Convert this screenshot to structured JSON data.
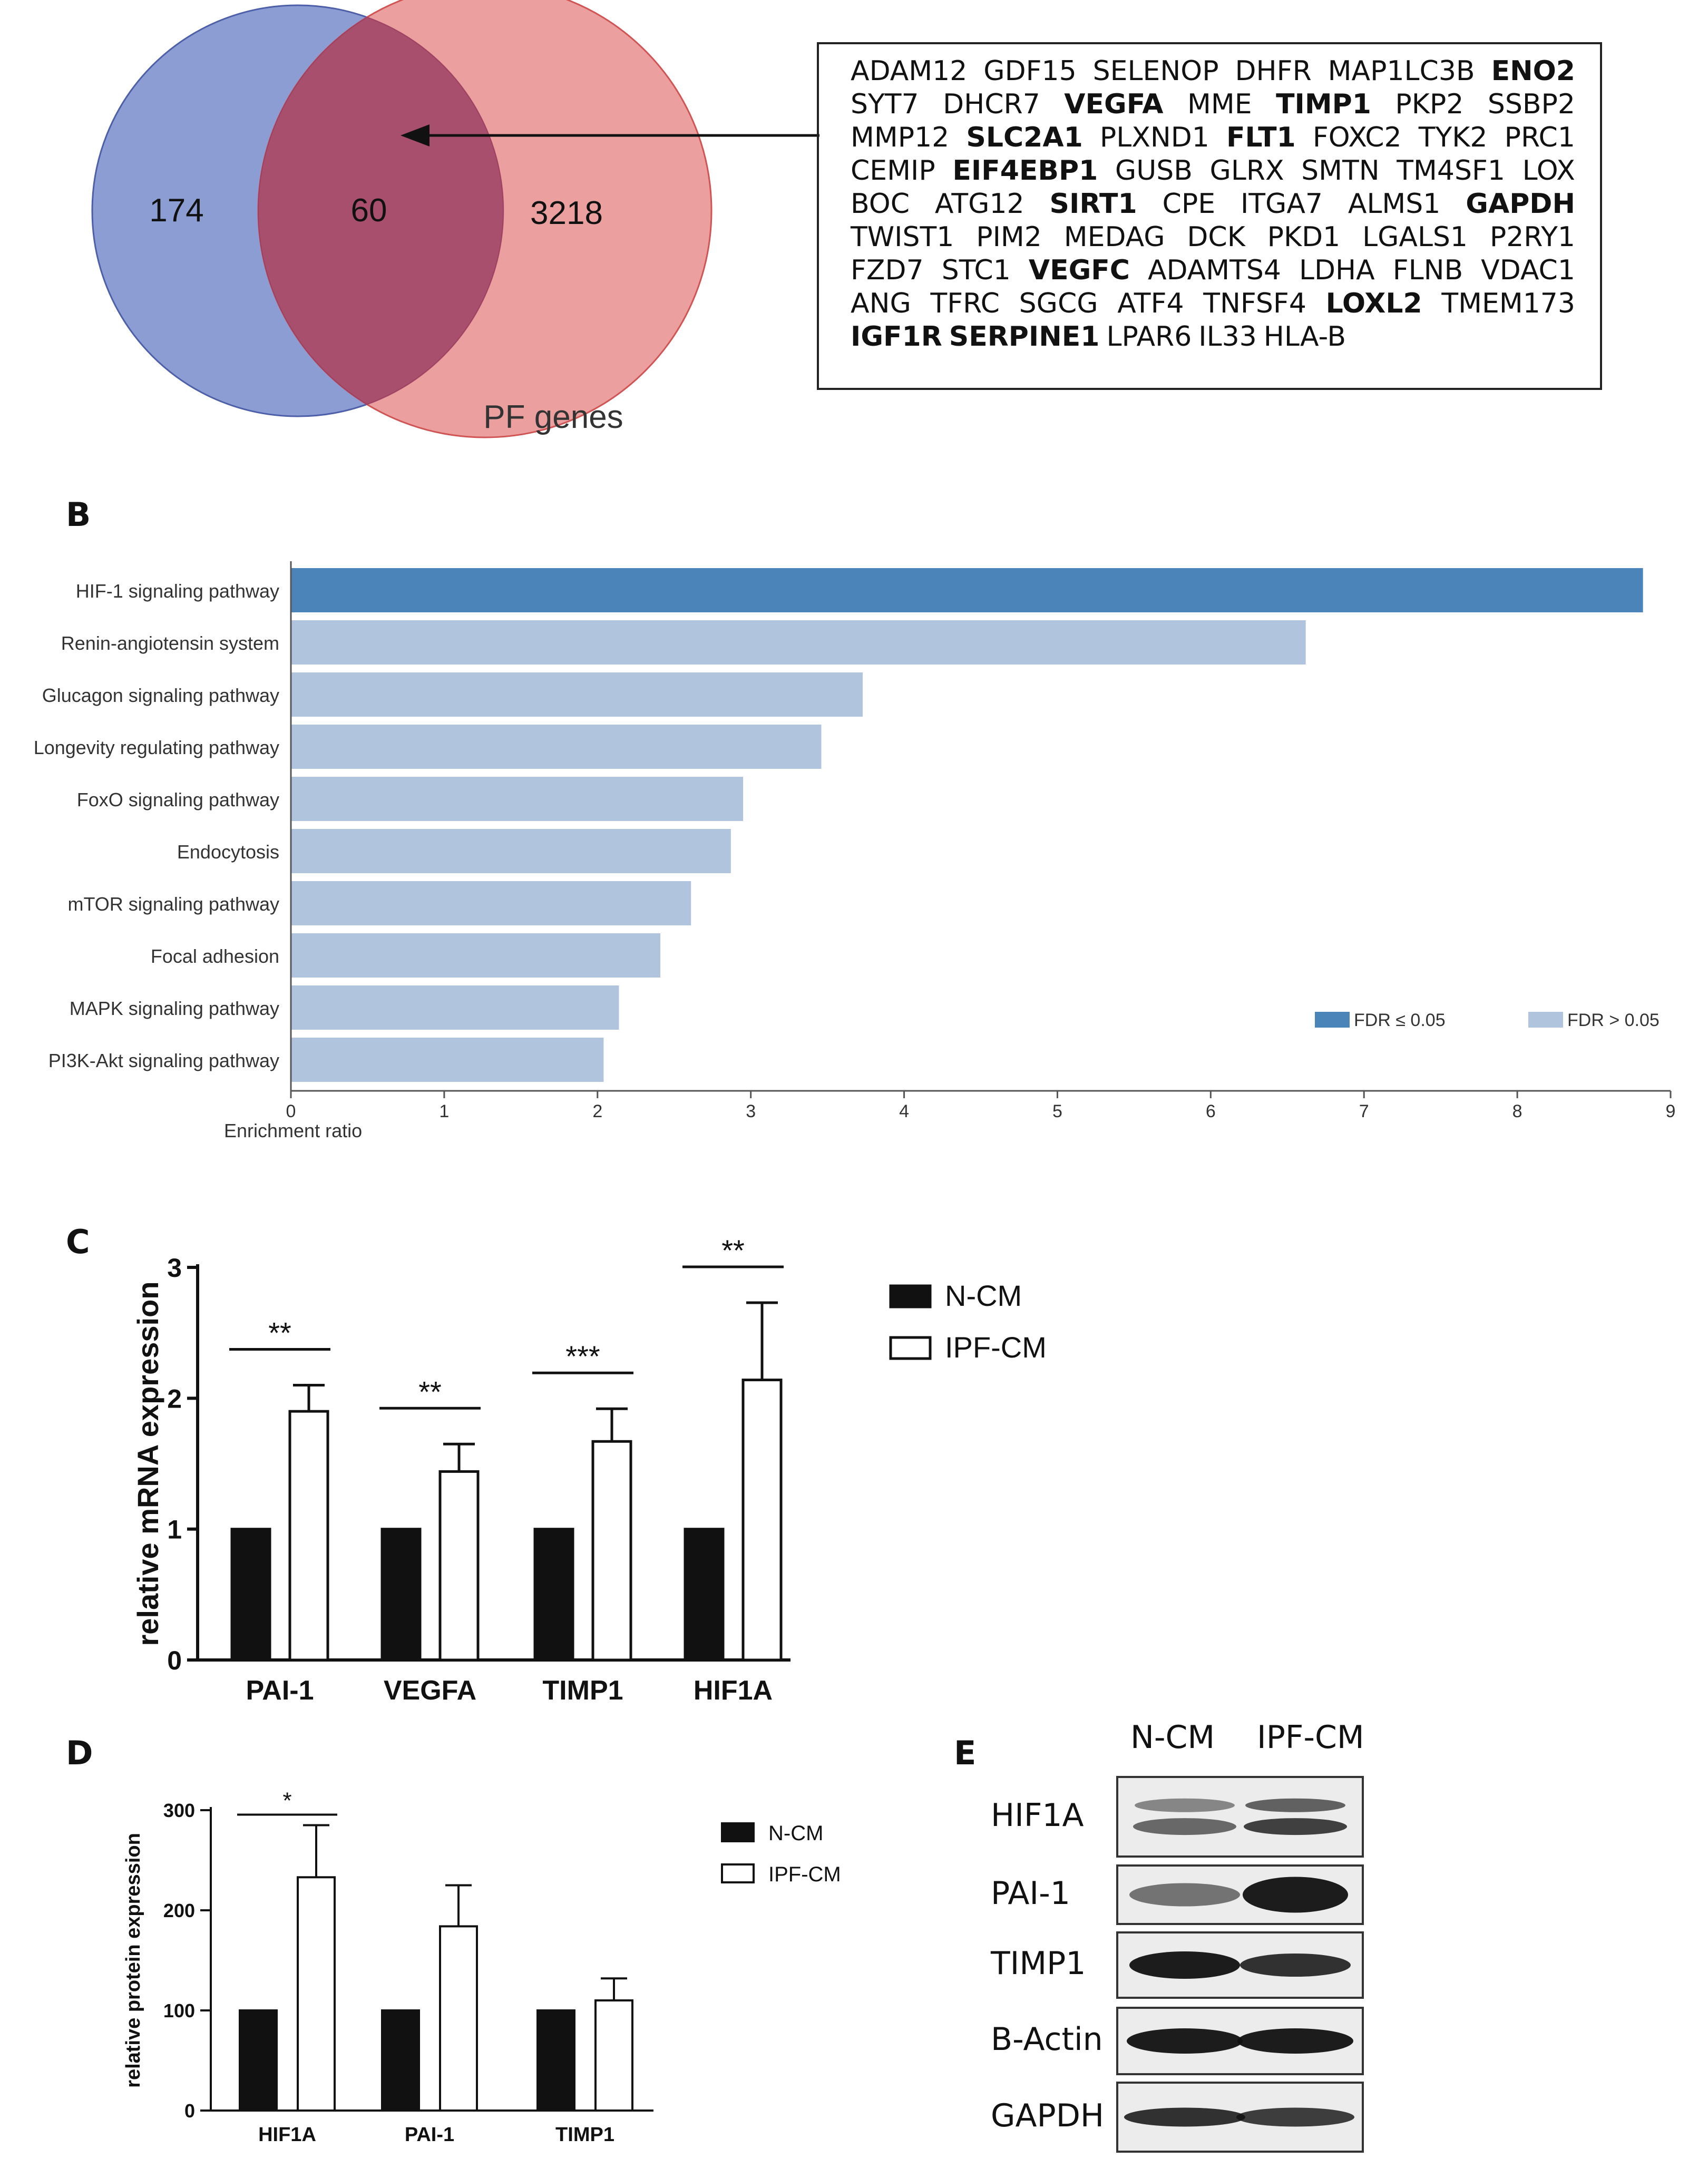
{
  "panel_a": {
    "venn": {
      "left_only": "174",
      "overlap": "60",
      "right_only": "3218",
      "right_label": "PF genes"
    },
    "gene_lines": [
      [
        {
          "t": "ADAM12",
          "b": false
        },
        {
          "t": "GDF15",
          "b": false
        },
        {
          "t": "SELENOP",
          "b": false
        },
        {
          "t": "DHFR",
          "b": false
        },
        {
          "t": "MAP1LC3B",
          "b": false
        },
        {
          "t": "ENO2",
          "b": true
        }
      ],
      [
        {
          "t": "SYT7",
          "b": false
        },
        {
          "t": "DHCR7",
          "b": false
        },
        {
          "t": "VEGFA",
          "b": true
        },
        {
          "t": "MME",
          "b": false
        },
        {
          "t": "TIMP1",
          "b": true
        },
        {
          "t": "PKP2",
          "b": false
        },
        {
          "t": "SSBP2",
          "b": false
        }
      ],
      [
        {
          "t": "MMP12",
          "b": false
        },
        {
          "t": "SLC2A1",
          "b": true
        },
        {
          "t": "PLXND1",
          "b": false
        },
        {
          "t": "FLT1",
          "b": true
        },
        {
          "t": "FOXC2",
          "b": false
        },
        {
          "t": "TYK2",
          "b": false
        },
        {
          "t": "PRC1",
          "b": false
        }
      ],
      [
        {
          "t": "CEMIP",
          "b": false
        },
        {
          "t": "EIF4EBP1",
          "b": true
        },
        {
          "t": "GUSB",
          "b": false
        },
        {
          "t": "GLRX",
          "b": false
        },
        {
          "t": "SMTN",
          "b": false
        },
        {
          "t": "TM4SF1",
          "b": false
        },
        {
          "t": "LOX",
          "b": false
        }
      ],
      [
        {
          "t": "BOC",
          "b": false
        },
        {
          "t": "ATG12",
          "b": false
        },
        {
          "t": "SIRT1",
          "b": true
        },
        {
          "t": "CPE",
          "b": false
        },
        {
          "t": "ITGA7",
          "b": false
        },
        {
          "t": "ALMS1",
          "b": false
        },
        {
          "t": "GAPDH",
          "b": true
        }
      ],
      [
        {
          "t": "TWIST1",
          "b": false
        },
        {
          "t": "PIM2",
          "b": false
        },
        {
          "t": "MEDAG",
          "b": false
        },
        {
          "t": "DCK",
          "b": false
        },
        {
          "t": "PKD1",
          "b": false
        },
        {
          "t": "LGALS1",
          "b": false
        },
        {
          "t": "P2RY1",
          "b": false
        }
      ],
      [
        {
          "t": "FZD7",
          "b": false
        },
        {
          "t": "STC1",
          "b": false
        },
        {
          "t": "VEGFC",
          "b": true
        },
        {
          "t": "ADAMTS4",
          "b": false
        },
        {
          "t": "LDHA",
          "b": false
        },
        {
          "t": "FLNB",
          "b": false
        },
        {
          "t": "VDAC1",
          "b": false
        }
      ],
      [
        {
          "t": "ANG",
          "b": false
        },
        {
          "t": "TFRC",
          "b": false
        },
        {
          "t": "SGCG",
          "b": false
        },
        {
          "t": "ATF4",
          "b": false
        },
        {
          "t": "TNFSF4",
          "b": false
        },
        {
          "t": "LOXL2",
          "b": true
        },
        {
          "t": "TMEM173",
          "b": false
        }
      ],
      [
        {
          "t": "IGF1R",
          "b": true
        },
        {
          "t": "SERPINE1",
          "b": true
        },
        {
          "t": "LPAR6",
          "b": false
        },
        {
          "t": "IL33",
          "b": false
        },
        {
          "t": "HLA-B",
          "b": false
        }
      ]
    ]
  },
  "labels": {
    "B": "B",
    "C": "C",
    "D": "D",
    "E": "E"
  },
  "colors": {
    "venn_left": "#6f84c8",
    "venn_right": "#e88a8a",
    "venn_overlap": "#a84f6e",
    "fdr_sig": "#4a84b8",
    "fdr_ns": "#b0c4de",
    "dark": "#111111"
  },
  "chart_data": [
    {
      "panel": "B",
      "type": "bar",
      "orientation": "horizontal",
      "categories": [
        "HIF-1 signaling pathway",
        "Renin-angiotensin system",
        "Glucagon signaling pathway",
        "Longevity regulating pathway",
        "FoxO signaling pathway",
        "Endocytosis",
        "mTOR signaling pathway",
        "Focal adhesion",
        "MAPK signaling pathway",
        "PI3K-Akt signaling pathway"
      ],
      "values": [
        8.82,
        6.62,
        3.73,
        3.46,
        2.95,
        2.87,
        2.61,
        2.41,
        2.14,
        2.04
      ],
      "significant": [
        true,
        false,
        false,
        false,
        false,
        false,
        false,
        false,
        false,
        false
      ],
      "xlabel": "Enrichment ratio",
      "xlim": [
        0,
        9
      ],
      "xticks": [
        "0",
        "1",
        "2",
        "3",
        "4",
        "5",
        "6",
        "7",
        "8",
        "9"
      ],
      "legend": [
        {
          "name": "FDR ≤ 0.05",
          "color": "#4a84b8"
        },
        {
          "name": "FDR > 0.05",
          "color": "#b0c4de"
        }
      ],
      "legend_position": "bottom-right"
    },
    {
      "panel": "C",
      "type": "bar",
      "categories": [
        "PAI-1",
        "VEGFA",
        "TIMP1",
        "HIF1A"
      ],
      "series": [
        {
          "name": "N-CM",
          "values": [
            1,
            1,
            1,
            1
          ],
          "errors": [
            0,
            0,
            0,
            0
          ],
          "fill": "#111111"
        },
        {
          "name": "IPF-CM",
          "values": [
            1.9,
            1.44,
            1.67,
            2.14
          ],
          "errors": [
            0.2,
            0.21,
            0.25,
            0.59
          ],
          "fill": "#ffffff"
        }
      ],
      "ylabel": "relative mRNA expression",
      "ylim": [
        0,
        3
      ],
      "yticks": [
        "0",
        "1",
        "2",
        "3"
      ],
      "significance": [
        "**",
        "**",
        "***",
        "**"
      ],
      "legend_position": "right"
    },
    {
      "panel": "D",
      "type": "bar",
      "categories": [
        "HIF1A",
        "PAI-1",
        "TIMP1"
      ],
      "series": [
        {
          "name": "N-CM",
          "values": [
            100,
            100,
            100
          ],
          "errors": [
            0,
            0,
            0
          ],
          "fill": "#111111"
        },
        {
          "name": "IPF-CM",
          "values": [
            233,
            184,
            110
          ],
          "errors": [
            52,
            41,
            22
          ],
          "fill": "#ffffff"
        }
      ],
      "ylabel": "relative protein expression",
      "ylim": [
        0,
        300
      ],
      "yticks": [
        "0",
        "100",
        "200",
        "300"
      ],
      "significance": [
        "*",
        "",
        ""
      ],
      "legend_position": "right"
    }
  ],
  "panel_e": {
    "columns": [
      "N-CM",
      "IPF-CM"
    ],
    "rows": [
      "HIF1A",
      "PAI-1",
      "TIMP1",
      "B-Actin",
      "GAPDH"
    ]
  }
}
